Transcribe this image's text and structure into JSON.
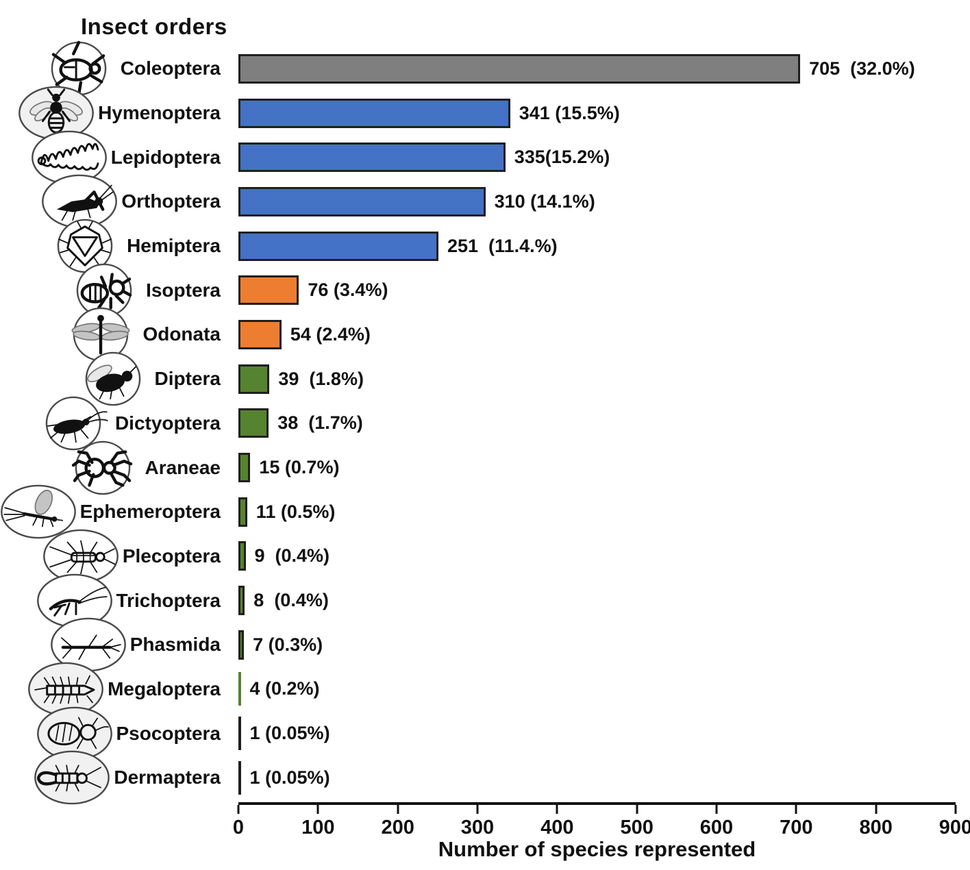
{
  "title": "Insect orders",
  "x_axis": {
    "label": "Number of species represented",
    "ticks": [
      0,
      100,
      200,
      300,
      400,
      500,
      600,
      700,
      800,
      900
    ],
    "max": 900
  },
  "colors": {
    "coleoptera_gray": "#7f7f7f",
    "major_blue": "#4472c4",
    "mid_orange": "#ed7d31",
    "minor_green": "#56832f",
    "line_black": "#1f1f1f",
    "bar_border": "#1f1f1f"
  },
  "rows": [
    {
      "order": "Coleoptera",
      "icon": "beetle-icon",
      "value": 705,
      "label": "705  (32.0%)",
      "color_key": "coleoptera_gray"
    },
    {
      "order": "Hymenoptera",
      "icon": "bee-icon",
      "value": 341,
      "label": "341 (15.5%)",
      "color_key": "major_blue"
    },
    {
      "order": "Lepidoptera",
      "icon": "caterpillar-icon",
      "value": 335,
      "label": "335(15.2%)",
      "color_key": "major_blue"
    },
    {
      "order": "Orthoptera",
      "icon": "grasshopper-icon",
      "value": 310,
      "label": "310 (14.1%)",
      "color_key": "major_blue"
    },
    {
      "order": "Hemiptera",
      "icon": "true-bug-icon",
      "value": 251,
      "label": "251  (11.4.%)",
      "color_key": "major_blue"
    },
    {
      "order": "Isoptera",
      "icon": "termite-icon",
      "value": 76,
      "label": "76 (3.4%)",
      "color_key": "mid_orange"
    },
    {
      "order": "Odonata",
      "icon": "dragonfly-icon",
      "value": 54,
      "label": "54 (2.4%)",
      "color_key": "mid_orange"
    },
    {
      "order": "Diptera",
      "icon": "fly-icon",
      "value": 39,
      "label": "39  (1.8%)",
      "color_key": "minor_green"
    },
    {
      "order": "Dictyoptera",
      "icon": "cockroach-icon",
      "value": 38,
      "label": "38  (1.7%)",
      "color_key": "minor_green"
    },
    {
      "order": "Araneae",
      "icon": "spider-icon",
      "value": 15,
      "label": "15 (0.7%)",
      "color_key": "minor_green"
    },
    {
      "order": "Ephemeroptera",
      "icon": "mayfly-icon",
      "value": 11,
      "label": "11 (0.5%)",
      "color_key": "minor_green"
    },
    {
      "order": "Plecoptera",
      "icon": "stonefly-icon",
      "value": 9,
      "label": "9  (0.4%)",
      "color_key": "minor_green"
    },
    {
      "order": "Trichoptera",
      "icon": "caddisfly-icon",
      "value": 8,
      "label": "8  (0.4%)",
      "color_key": "minor_green"
    },
    {
      "order": "Phasmida",
      "icon": "stick-insect-icon",
      "value": 7,
      "label": "7 (0.3%)",
      "color_key": "minor_green"
    },
    {
      "order": "Megaloptera",
      "icon": "hellgrammite-icon",
      "value": 4,
      "label": "4 (0.2%)",
      "color_key": "minor_green"
    },
    {
      "order": "Psocoptera",
      "icon": "barklouse-icon",
      "value": 1,
      "label": "1 (0.05%)",
      "color_key": "line_black"
    },
    {
      "order": "Dermaptera",
      "icon": "earwig-icon",
      "value": 1,
      "label": "1 (0.05%)",
      "color_key": "line_black"
    }
  ],
  "chart_data": {
    "type": "bar",
    "orientation": "horizontal",
    "title": "Insect orders",
    "xlabel": "Number of species represented",
    "xlim": [
      0,
      900
    ],
    "x_ticks": [
      0,
      100,
      200,
      300,
      400,
      500,
      600,
      700,
      800,
      900
    ],
    "grid": false,
    "legend": false,
    "categories": [
      "Coleoptera",
      "Hymenoptera",
      "Lepidoptera",
      "Orthoptera",
      "Hemiptera",
      "Isoptera",
      "Odonata",
      "Diptera",
      "Dictyoptera",
      "Araneae",
      "Ephemeroptera",
      "Plecoptera",
      "Trichoptera",
      "Phasmida",
      "Megaloptera",
      "Psocoptera",
      "Dermaptera"
    ],
    "values": [
      705,
      341,
      335,
      310,
      251,
      76,
      54,
      39,
      38,
      15,
      11,
      9,
      8,
      7,
      4,
      1,
      1
    ],
    "percent_labels": [
      "32.0%",
      "15.5%",
      "15.2%",
      "14.1%",
      "11.4.%",
      "3.4%",
      "2.4%",
      "1.8%",
      "1.7%",
      "0.7%",
      "0.5%",
      "0.4%",
      "0.4%",
      "0.3%",
      "0.2%",
      "0.05%",
      "0.05%"
    ],
    "bar_colors": [
      "#7f7f7f",
      "#4472c4",
      "#4472c4",
      "#4472c4",
      "#4472c4",
      "#ed7d31",
      "#ed7d31",
      "#56832f",
      "#56832f",
      "#56832f",
      "#56832f",
      "#56832f",
      "#56832f",
      "#56832f",
      "#56832f",
      "#1f1f1f",
      "#1f1f1f"
    ]
  }
}
